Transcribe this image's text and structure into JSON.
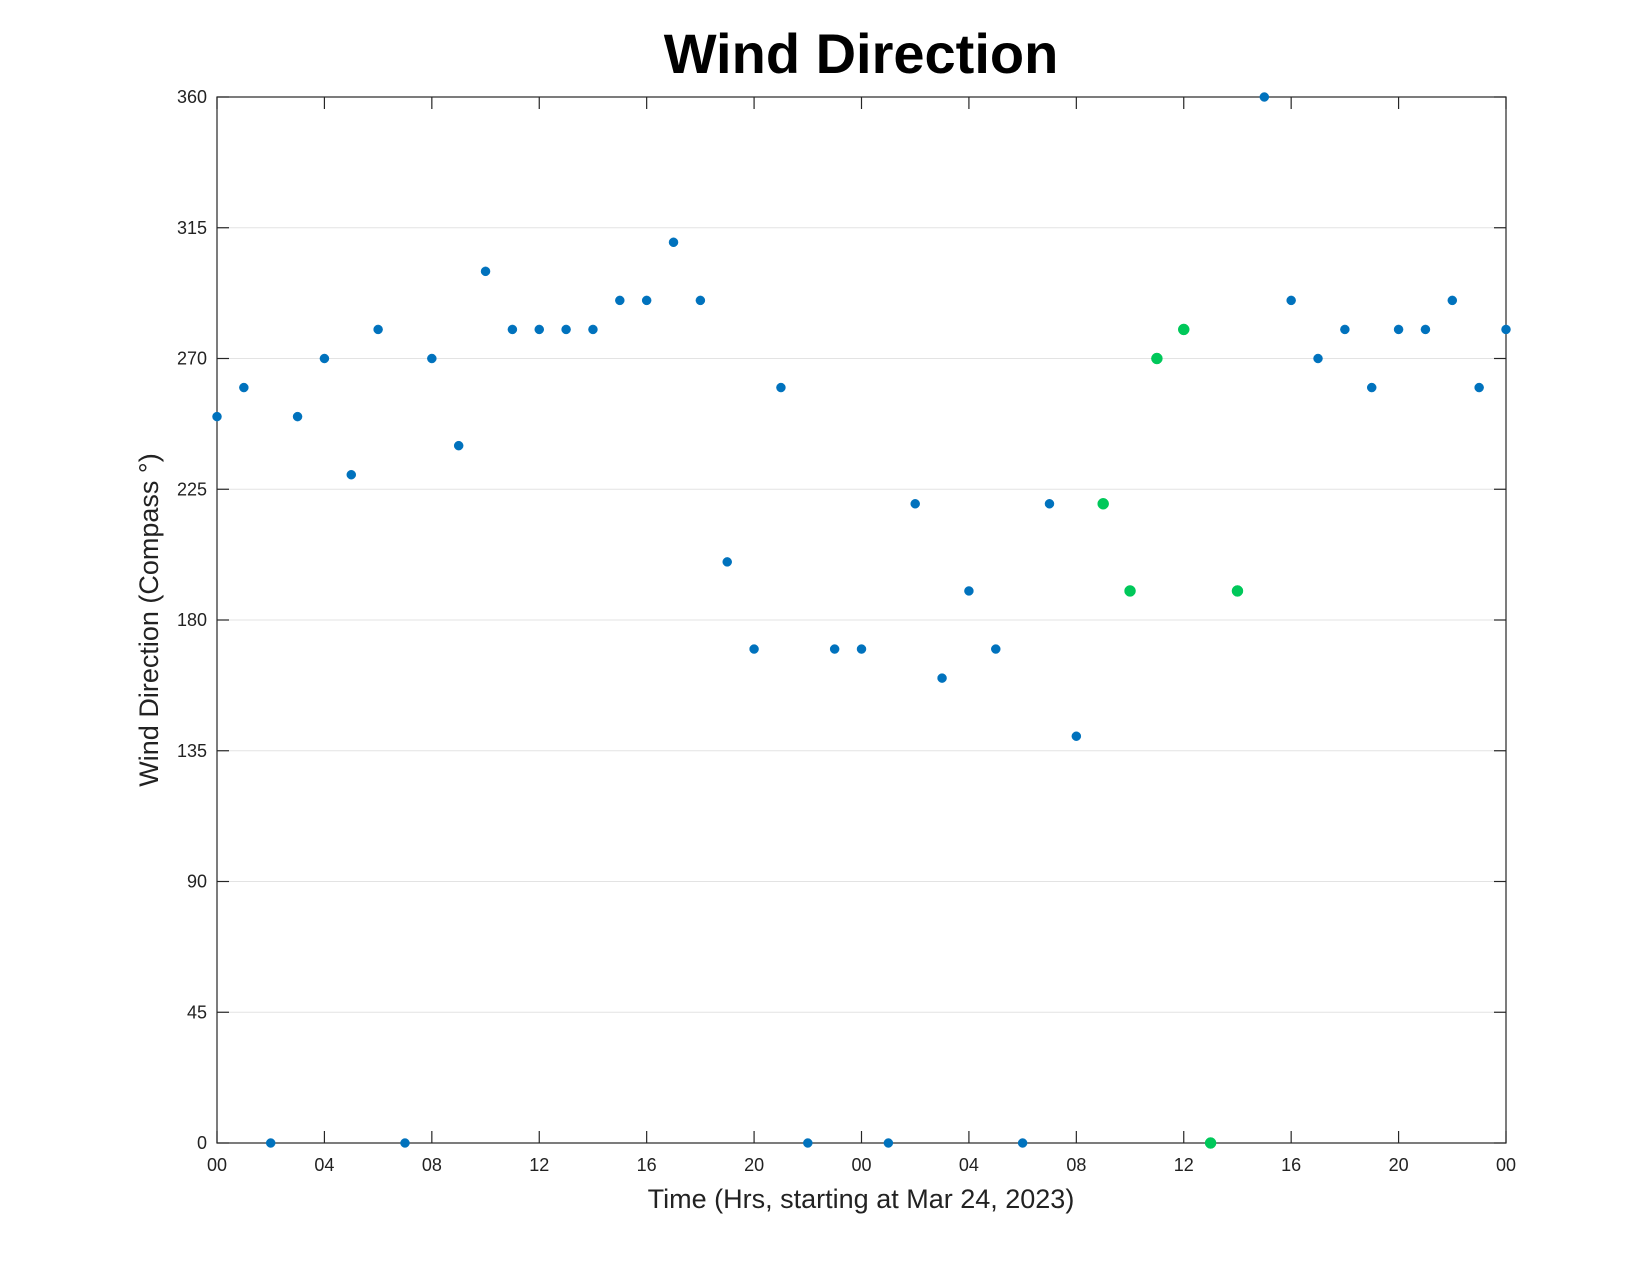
{
  "chart_data": {
    "type": "scatter",
    "title": "Wind Direction",
    "xlabel": "Time (Hrs, starting at Mar 24, 2023)",
    "ylabel": "Wind Direction (Compass °)",
    "x_unit": "hour",
    "xlim": [
      0,
      48
    ],
    "ylim": [
      0,
      360
    ],
    "x_ticks": [
      0,
      4,
      8,
      12,
      16,
      20,
      24,
      28,
      32,
      36,
      40,
      44,
      48
    ],
    "x_tick_labels": [
      "00",
      "04",
      "08",
      "12",
      "16",
      "20",
      "00",
      "04",
      "08",
      "12",
      "16",
      "20",
      "00"
    ],
    "y_ticks": [
      0,
      45,
      90,
      135,
      180,
      225,
      270,
      315,
      360
    ],
    "y_tick_labels": [
      "0",
      "45",
      "90",
      "135",
      "180",
      "225",
      "270",
      "315",
      "360"
    ],
    "grid": "horizontal",
    "legend": "none",
    "series": [
      {
        "color": "#0072bd",
        "points": [
          [
            0,
            250
          ],
          [
            1,
            260
          ],
          [
            2,
            0
          ],
          [
            3,
            250
          ],
          [
            4,
            270
          ],
          [
            5,
            230
          ],
          [
            6,
            280
          ],
          [
            7,
            0
          ],
          [
            8,
            270
          ],
          [
            9,
            240
          ],
          [
            10,
            300
          ],
          [
            11,
            280
          ],
          [
            12,
            280
          ],
          [
            13,
            280
          ],
          [
            14,
            280
          ],
          [
            15,
            290
          ],
          [
            16,
            290
          ],
          [
            17,
            310
          ],
          [
            18,
            290
          ],
          [
            19,
            200
          ],
          [
            20,
            170
          ],
          [
            21,
            260
          ],
          [
            22,
            0
          ],
          [
            23,
            170
          ],
          [
            24,
            170
          ],
          [
            25,
            0
          ],
          [
            26,
            220
          ],
          [
            27,
            160
          ],
          [
            28,
            190
          ],
          [
            29,
            170
          ],
          [
            30,
            0
          ],
          [
            31,
            220
          ],
          [
            32,
            140
          ],
          [
            39,
            360
          ],
          [
            40,
            290
          ],
          [
            41,
            270
          ],
          [
            42,
            280
          ],
          [
            43,
            260
          ],
          [
            44,
            280
          ],
          [
            45,
            280
          ],
          [
            46,
            290
          ],
          [
            47,
            260
          ],
          [
            48,
            280
          ]
        ]
      },
      {
        "color": "#00c85a",
        "points": [
          [
            33,
            220
          ],
          [
            34,
            190
          ],
          [
            35,
            270
          ],
          [
            36,
            280
          ],
          [
            37,
            0
          ],
          [
            38,
            190
          ]
        ]
      }
    ]
  }
}
